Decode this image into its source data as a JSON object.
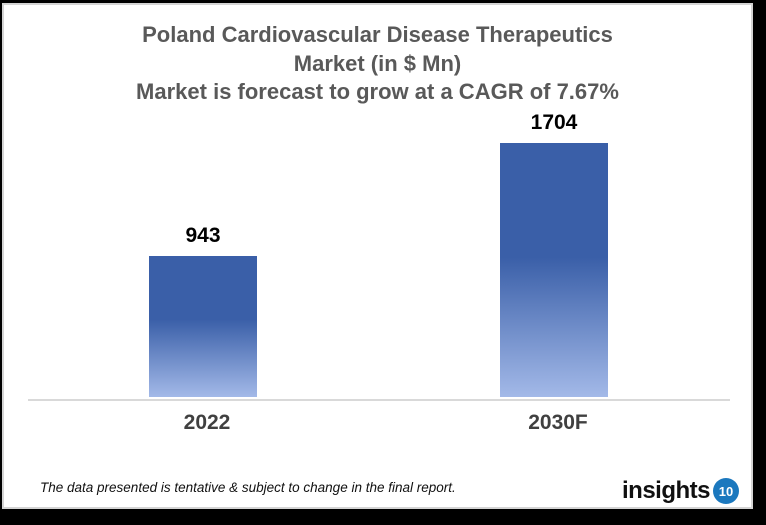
{
  "title": {
    "line1": "Poland Cardiovascular Disease Therapeutics",
    "line2": "Market (in $ Mn)",
    "subtitle": "Market is forecast to grow at a CAGR of 7.67%"
  },
  "chart_data": {
    "type": "bar",
    "title": "Poland Cardiovascular Disease Therapeutics Market (in $ Mn)",
    "subtitle": "Market is forecast to grow at a CAGR of 7.67%",
    "categories": [
      "2022",
      "2030F"
    ],
    "values": [
      943,
      1704
    ],
    "data_labels": [
      "943",
      "1704"
    ],
    "xlabel": "",
    "ylabel": "",
    "grid": false,
    "legend": false,
    "axis_line_color": "#d9d9d9",
    "bar_color_top": "#3a5fa8",
    "bar_color_bottom": "#a3b9e8",
    "label_color": "#000000",
    "category_label_color": "#404040",
    "title_color": "#595959"
  },
  "footer": {
    "disclaimer": "The data presented is tentative & subject to change in the final report.",
    "logo_text": "insights",
    "logo_badge": "10",
    "logo_badge_color": "#1b78be"
  }
}
